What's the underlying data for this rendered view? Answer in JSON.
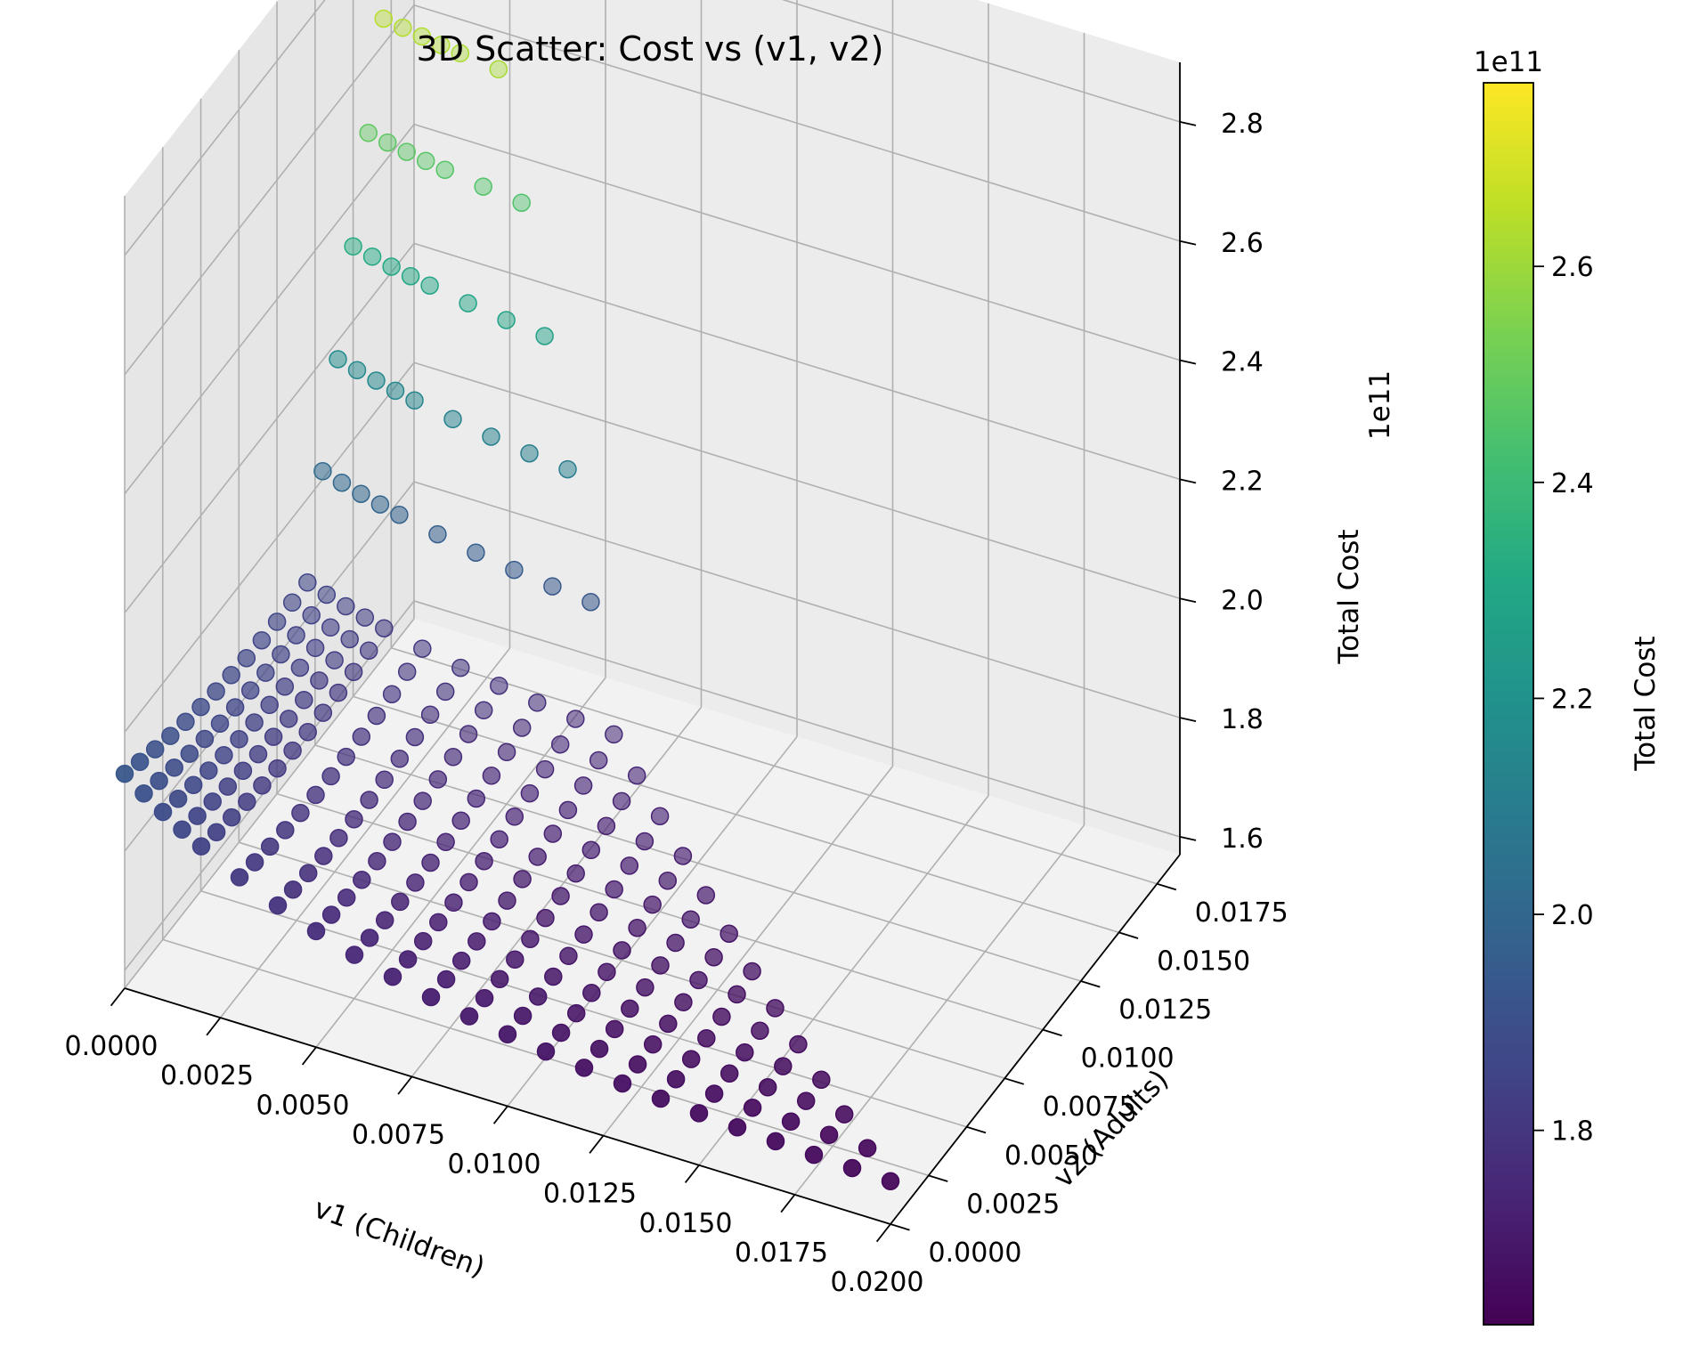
{
  "chart_data": {
    "type": "scatter",
    "title": "3D Scatter: Cost vs (v1, v2)",
    "xlabel": "v1 (Children)",
    "ylabel": "v2 (Adults)",
    "zlabel": "Total Cost",
    "z_offset_text": "1e11",
    "x_ticks": [
      "0.0000",
      "0.0025",
      "0.0050",
      "0.0075",
      "0.0100",
      "0.0125",
      "0.0150",
      "0.0175",
      "0.0200"
    ],
    "y_ticks": [
      "0.0000",
      "0.0025",
      "0.0050",
      "0.0075",
      "0.0100",
      "0.0125",
      "0.0150",
      "0.0175"
    ],
    "z_ticks": [
      "1.6",
      "1.8",
      "2.0",
      "2.2",
      "2.4",
      "2.6",
      "2.8"
    ],
    "xlim": [
      0,
      0.02
    ],
    "ylim": [
      0,
      0.019
    ],
    "zlim": [
      1.57,
      2.9
    ],
    "colormap": "viridis",
    "colorbar": {
      "label": "Total Cost",
      "offset_text": "1e11",
      "ticks": [
        "1.8",
        "2.0",
        "2.2",
        "2.4",
        "2.6"
      ],
      "range": [
        1.62,
        2.77
      ]
    },
    "grid": true,
    "surface": {
      "description_values": "z (×1e11) sampled on a grid of v1 × v2 points",
      "v1_grid": [
        0.0,
        0.0005,
        0.001,
        0.0015,
        0.002,
        0.003,
        0.004,
        0.005,
        0.006,
        0.007,
        0.008,
        0.009,
        0.01,
        0.011,
        0.012,
        0.013,
        0.014,
        0.015,
        0.016,
        0.017,
        0.018,
        0.019,
        0.02
      ],
      "v2_grid": [
        0.0,
        0.001,
        0.002,
        0.003,
        0.004,
        0.005,
        0.006,
        0.007,
        0.008,
        0.009,
        0.01,
        0.011,
        0.012,
        0.013,
        0.014,
        0.015,
        0.016,
        0.017,
        0.018
      ],
      "min_cost": 1.63,
      "max_cost": 2.77
    }
  },
  "colors": {
    "pane": "#f2f2f2",
    "grid": "#b0b0b0"
  }
}
